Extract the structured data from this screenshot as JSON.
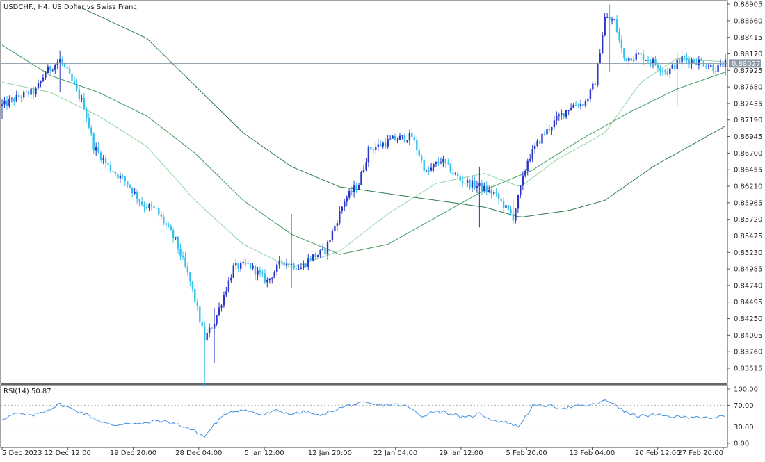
{
  "window": {
    "symbol_title": "USDCHF., H4:  US Dollar vs Swiss Franc",
    "current_price_label": "0.88027"
  },
  "indicator": {
    "label": "RSI(14) 50.87"
  },
  "colors": {
    "bull": "#2a35c8",
    "bear": "#33c1ee",
    "ma_fast": "#8fd4a3",
    "ma_mid": "#3f9a5e",
    "ma_slow": "#2d7a4a",
    "rsi": "#3f8de0",
    "axis": "#555555",
    "text": "#222222",
    "price_line": "#8a9aa6"
  },
  "chart_data": [
    {
      "type": "candlestick",
      "title": "USDCHF., H4:  US Dollar vs Swiss Franc",
      "ylim": [
        0.8335,
        0.89
      ],
      "y_ticks": [
        "0.88905",
        "0.88660",
        "0.88415",
        "0.88170",
        "0.87925",
        "0.87680",
        "0.87435",
        "0.87190",
        "0.86945",
        "0.86700",
        "0.86455",
        "0.86210",
        "0.85965",
        "0.85720",
        "0.85475",
        "0.85230",
        "0.84985",
        "0.84740",
        "0.84495",
        "0.84250",
        "0.84005",
        "0.83760",
        "0.83515"
      ],
      "x_ticks": [
        "5 Dec 2023",
        "12 Dec 12:00",
        "19 Dec 20:00",
        "28 Dec 04:00",
        "5 Jan 12:00",
        "12 Jan 20:00",
        "22 Jan 04:00",
        "29 Jan 12:00",
        "5 Feb 20:00",
        "13 Feb 04:00",
        "20 Feb 12:00",
        "27 Feb 20:00"
      ],
      "current_price": 0.88027,
      "close_path": [
        [
          0,
          0.874
        ],
        [
          8,
          0.8755
        ],
        [
          14,
          0.8762
        ],
        [
          18,
          0.879
        ],
        [
          24,
          0.8808
        ],
        [
          27,
          0.879
        ],
        [
          34,
          0.874
        ],
        [
          38,
          0.868
        ],
        [
          44,
          0.865
        ],
        [
          52,
          0.8625
        ],
        [
          58,
          0.8595
        ],
        [
          64,
          0.8585
        ],
        [
          72,
          0.854
        ],
        [
          78,
          0.848
        ],
        [
          84,
          0.8395
        ],
        [
          88,
          0.842
        ],
        [
          96,
          0.85
        ],
        [
          102,
          0.8505
        ],
        [
          110,
          0.848
        ],
        [
          116,
          0.851
        ],
        [
          124,
          0.85
        ],
        [
          128,
          0.8515
        ],
        [
          134,
          0.8525
        ],
        [
          142,
          0.86
        ],
        [
          148,
          0.8625
        ],
        [
          152,
          0.8675
        ],
        [
          162,
          0.869
        ],
        [
          170,
          0.8695
        ],
        [
          176,
          0.864
        ],
        [
          182,
          0.866
        ],
        [
          190,
          0.863
        ],
        [
          198,
          0.862
        ],
        [
          204,
          0.861
        ],
        [
          212,
          0.8575
        ],
        [
          218,
          0.866
        ],
        [
          224,
          0.8695
        ],
        [
          230,
          0.872
        ],
        [
          236,
          0.874
        ],
        [
          242,
          0.8745
        ],
        [
          246,
          0.8775
        ],
        [
          250,
          0.887
        ],
        [
          254,
          0.8865
        ],
        [
          258,
          0.881
        ],
        [
          264,
          0.8815
        ],
        [
          270,
          0.8805
        ],
        [
          276,
          0.879
        ],
        [
          282,
          0.881
        ],
        [
          290,
          0.8805
        ],
        [
          296,
          0.8795
        ],
        [
          300,
          0.8803
        ]
      ],
      "highlights": [
        [
          0,
          0.875,
          0.872
        ],
        [
          24,
          0.8822,
          0.876
        ],
        [
          84,
          0.842,
          0.8324
        ],
        [
          88,
          0.844,
          0.836
        ],
        [
          120,
          0.858,
          0.847
        ],
        [
          198,
          0.865,
          0.856
        ],
        [
          212,
          0.86,
          0.8565
        ],
        [
          252,
          0.889,
          0.879
        ],
        [
          280,
          0.882,
          0.874
        ],
        [
          300,
          0.881,
          0.8785
        ]
      ],
      "moving_averages": [
        {
          "period": "fast",
          "points": [
            [
              0,
              0.8775
            ],
            [
              20,
              0.876
            ],
            [
              40,
              0.8725
            ],
            [
              60,
              0.868
            ],
            [
              80,
              0.86
            ],
            [
              100,
              0.8535
            ],
            [
              120,
              0.85
            ],
            [
              140,
              0.8525
            ],
            [
              160,
              0.858
            ],
            [
              180,
              0.8625
            ],
            [
              200,
              0.864
            ],
            [
              215,
              0.862
            ],
            [
              230,
              0.866
            ],
            [
              250,
              0.87
            ],
            [
              265,
              0.8775
            ],
            [
              280,
              0.881
            ],
            [
              300,
              0.8805
            ]
          ]
        },
        {
          "period": "mid",
          "points": [
            [
              0,
              0.883
            ],
            [
              20,
              0.8785
            ],
            [
              40,
              0.876
            ],
            [
              60,
              0.8725
            ],
            [
              80,
              0.867
            ],
            [
              100,
              0.86
            ],
            [
              120,
              0.855
            ],
            [
              140,
              0.852
            ],
            [
              160,
              0.8535
            ],
            [
              180,
              0.8575
            ],
            [
              200,
              0.8615
            ],
            [
              220,
              0.8645
            ],
            [
              240,
              0.869
            ],
            [
              260,
              0.873
            ],
            [
              280,
              0.8765
            ],
            [
              300,
              0.879
            ]
          ]
        },
        {
          "period": "slow",
          "points": [
            [
              30,
              0.889
            ],
            [
              60,
              0.884
            ],
            [
              80,
              0.877
            ],
            [
              100,
              0.87
            ],
            [
              120,
              0.865
            ],
            [
              140,
              0.862
            ],
            [
              160,
              0.861
            ],
            [
              180,
              0.86
            ],
            [
              200,
              0.859
            ],
            [
              215,
              0.8575
            ],
            [
              235,
              0.8585
            ],
            [
              250,
              0.86
            ],
            [
              270,
              0.865
            ],
            [
              290,
              0.869
            ],
            [
              300,
              0.871
            ]
          ]
        }
      ]
    },
    {
      "type": "line",
      "title": "RSI(14) 50.87",
      "ylim": [
        0,
        100
      ],
      "y_ticks": [
        "100.00",
        "70.00",
        "30.00",
        "0.00"
      ],
      "levels": [
        70,
        30
      ],
      "series": [
        {
          "points": [
            [
              0,
              45
            ],
            [
              6,
              55
            ],
            [
              12,
              50
            ],
            [
              18,
              60
            ],
            [
              24,
              72
            ],
            [
              28,
              65
            ],
            [
              34,
              55
            ],
            [
              40,
              42
            ],
            [
              46,
              32
            ],
            [
              52,
              38
            ],
            [
              58,
              35
            ],
            [
              64,
              42
            ],
            [
              70,
              38
            ],
            [
              76,
              30
            ],
            [
              80,
              22
            ],
            [
              84,
              12
            ],
            [
              88,
              35
            ],
            [
              94,
              58
            ],
            [
              100,
              62
            ],
            [
              108,
              52
            ],
            [
              114,
              60
            ],
            [
              120,
              54
            ],
            [
              126,
              58
            ],
            [
              132,
              50
            ],
            [
              138,
              62
            ],
            [
              144,
              70
            ],
            [
              150,
              74
            ],
            [
              156,
              70
            ],
            [
              162,
              72
            ],
            [
              168,
              68
            ],
            [
              174,
              50
            ],
            [
              180,
              60
            ],
            [
              186,
              55
            ],
            [
              192,
              46
            ],
            [
              198,
              55
            ],
            [
              204,
              42
            ],
            [
              210,
              38
            ],
            [
              214,
              30
            ],
            [
              220,
              68
            ],
            [
              226,
              70
            ],
            [
              232,
              65
            ],
            [
              238,
              68
            ],
            [
              244,
              70
            ],
            [
              250,
              78
            ],
            [
              254,
              74
            ],
            [
              258,
              58
            ],
            [
              264,
              50
            ],
            [
              270,
              52
            ],
            [
              276,
              50
            ],
            [
              282,
              48
            ],
            [
              288,
              50
            ],
            [
              294,
              44
            ],
            [
              300,
              52
            ]
          ]
        }
      ]
    }
  ]
}
